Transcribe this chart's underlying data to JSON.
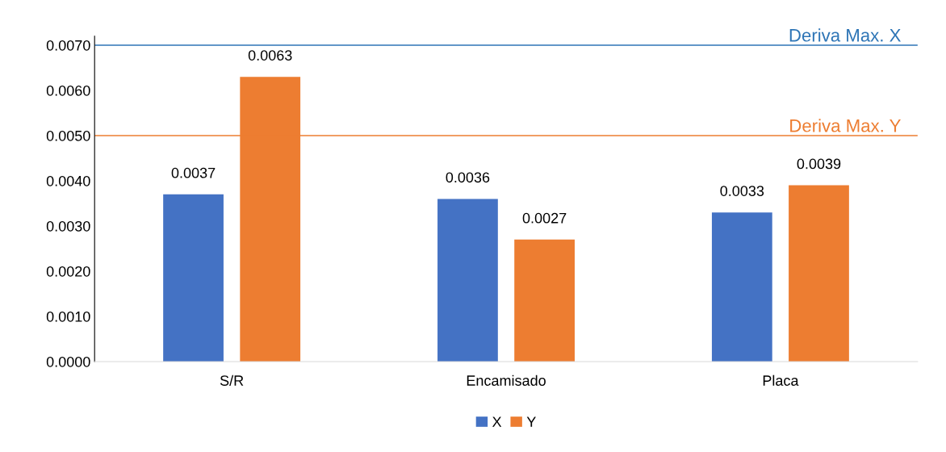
{
  "chart_data": {
    "type": "bar",
    "categories": [
      "S/R",
      "Encamisado",
      "Placa"
    ],
    "series": [
      {
        "name": "X",
        "color": "#4472c4",
        "values": [
          0.0037,
          0.0036,
          0.0033
        ]
      },
      {
        "name": "Y",
        "color": "#ed7d31",
        "values": [
          0.0063,
          0.0027,
          0.0039
        ]
      }
    ],
    "ylim": [
      0,
      0.0072
    ],
    "yticks": [
      {
        "value": 0,
        "label": "0.0000"
      },
      {
        "value": 0.001,
        "label": "0.0010"
      },
      {
        "value": 0.002,
        "label": "0.0020"
      },
      {
        "value": 0.003,
        "label": "0.0030"
      },
      {
        "value": 0.004,
        "label": "0.0040"
      },
      {
        "value": 0.005,
        "label": "0.0050"
      },
      {
        "value": 0.006,
        "label": "0.0060"
      },
      {
        "value": 0.007,
        "label": "0.0070"
      }
    ],
    "ref_lines": [
      {
        "axis": "y",
        "value": 0.007,
        "label": "Deriva Max. X",
        "color": "#2e75b6"
      },
      {
        "axis": "y",
        "value": 0.005,
        "label": "Deriva Max. Y",
        "color": "#ed7d31"
      }
    ],
    "data_labels": true,
    "grid": false,
    "legend": "bottom"
  }
}
